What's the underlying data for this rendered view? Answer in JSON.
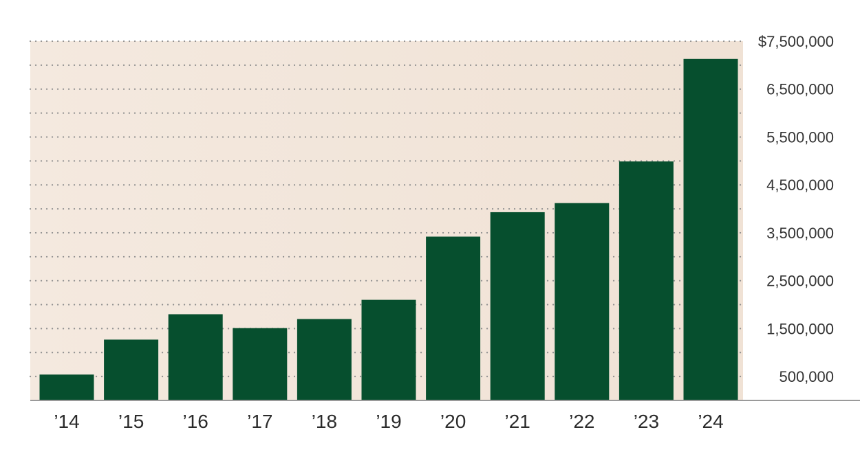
{
  "chart_data": {
    "type": "bar",
    "title": "",
    "xlabel": "",
    "ylabel": "",
    "categories": [
      "’14",
      "’15",
      "’16",
      "’17",
      "’18",
      "’19",
      "’20",
      "’21",
      "’22",
      "’23",
      "’24"
    ],
    "values": [
      540000,
      1270000,
      1800000,
      1510000,
      1700000,
      2100000,
      3420000,
      3930000,
      4120000,
      4990000,
      7130000
    ],
    "ylim": [
      0,
      7500000
    ],
    "y_tick_values": [
      500000,
      1500000,
      2500000,
      3500000,
      4500000,
      5500000,
      6500000,
      7500000
    ],
    "y_tick_labels": [
      "500,000",
      "1,500,000",
      "2,500,000",
      "3,500,000",
      "4,500,000",
      "5,500,000",
      "6,500,000",
      "$7,500,000"
    ],
    "grid": true,
    "grid_style": "dotted",
    "y_axis_position": "right",
    "legend": "none",
    "colors": {
      "bar": "#064f2e",
      "background_left": "#f4e9df",
      "background_right": "#f0e2d5",
      "grid": "#8f8f8f",
      "axis": "#9a9a9a"
    }
  }
}
